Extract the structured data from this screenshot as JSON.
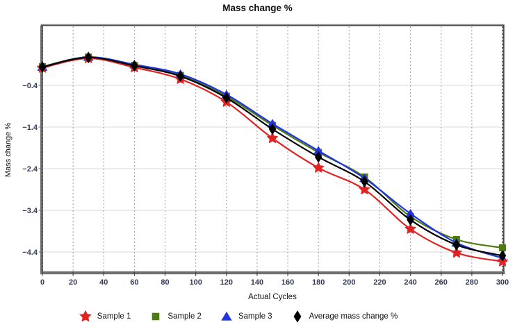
{
  "chart_data": {
    "type": "line",
    "title": "Mass change %",
    "xlabel": "Actual Cycles",
    "ylabel": "Mass change %",
    "xlim": [
      0,
      300
    ],
    "ylim": [
      -4.9,
      1.0
    ],
    "x_ticks": [
      0,
      20,
      40,
      60,
      80,
      100,
      120,
      140,
      160,
      180,
      200,
      220,
      240,
      260,
      280,
      300
    ],
    "x_tick_labels": [
      "0",
      "20",
      "40",
      "60",
      "80",
      "100",
      "120",
      "140",
      "160",
      "180",
      "200",
      "220",
      "240",
      "260",
      "280",
      "300"
    ],
    "y_ticks": [
      -0.4,
      -1.4,
      -2.4,
      -3.4,
      -4.4
    ],
    "y_tick_labels": [
      "−0.4",
      "−1.4",
      "−2.4",
      "−3.4",
      "−4.4"
    ],
    "grid": {
      "vertical": "dashed",
      "horizontal": "solid"
    },
    "legend_position": "bottom",
    "x": [
      0,
      30,
      60,
      90,
      120,
      150,
      180,
      210,
      240,
      270,
      300
    ],
    "series": [
      {
        "name": "Sample 1",
        "color": "#e02424",
        "marker": "star",
        "values": [
          0.02,
          0.25,
          0.03,
          -0.25,
          -0.8,
          -1.67,
          -2.38,
          -2.9,
          -3.85,
          -4.42,
          -4.63
        ]
      },
      {
        "name": "Sample 2",
        "color": "#4d7b12",
        "marker": "square",
        "values": [
          0.05,
          0.28,
          0.08,
          -0.16,
          -0.66,
          -1.36,
          -2.01,
          -2.6,
          -3.55,
          -4.1,
          -4.3
        ]
      },
      {
        "name": "Sample 3",
        "color": "#1f35e0",
        "marker": "triangle",
        "values": [
          0.04,
          0.28,
          0.1,
          -0.13,
          -0.62,
          -1.32,
          -1.97,
          -2.63,
          -3.48,
          -4.18,
          -4.55
        ]
      },
      {
        "name": "Average mass change %",
        "color": "#000000",
        "marker": "diamond",
        "values": [
          0.04,
          0.27,
          0.07,
          -0.18,
          -0.7,
          -1.45,
          -2.12,
          -2.71,
          -3.63,
          -4.23,
          -4.49
        ]
      }
    ],
    "colors": {
      "tick_label": "#333a56",
      "axis": "#6f6f6f",
      "frame": "#4a4a4a",
      "frame_outer": "#d0d0d0",
      "grid_horizontal": "#d8d8d8",
      "grid_vertical": "#9c9c9c",
      "grid_vertical_edge": "#3d3d3d",
      "tick_mark": "#444444"
    }
  }
}
